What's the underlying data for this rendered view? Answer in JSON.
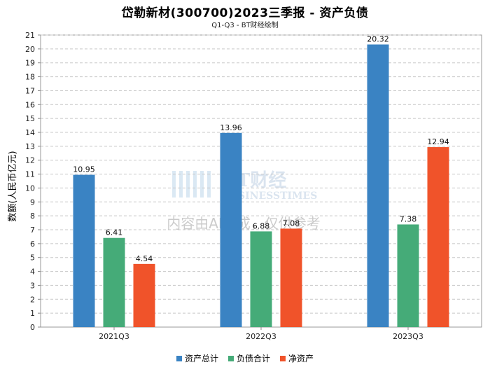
{
  "title": "岱勒新材(300700)2023三季报 - 资产负债",
  "subtitle": "Q1-Q3 - BT财经绘制",
  "watermark": {
    "brand": "BT财经",
    "brand_en": "BUSINESSTIMES",
    "notice": "内容由AI生成，仅供参考"
  },
  "chart_data": {
    "type": "bar",
    "title": "岱勒新材(300700)2023三季报 - 资产负债",
    "subtitle": "Q1-Q3 - BT财经绘制",
    "xlabel": "",
    "ylabel": "数额(人民币亿元)",
    "ylim": [
      0,
      21
    ],
    "yticks": [
      "0",
      "1",
      "2",
      "3",
      "4",
      "5",
      "6",
      "7",
      "8",
      "9",
      "10",
      "11",
      "12",
      "13",
      "14",
      "15",
      "16",
      "17",
      "18",
      "19",
      "20",
      "21"
    ],
    "grid": true,
    "legend_position": "bottom",
    "categories": [
      "2021Q3",
      "2022Q3",
      "2023Q3"
    ],
    "series": [
      {
        "name": "资产总计",
        "color": "#3a83c3",
        "values": [
          10.95,
          13.96,
          20.32
        ],
        "labels": [
          "10.95",
          "13.96",
          "20.32"
        ]
      },
      {
        "name": "负债合计",
        "color": "#45ab78",
        "values": [
          6.41,
          6.88,
          7.38
        ],
        "labels": [
          "6.41",
          "6.88",
          "7.38"
        ]
      },
      {
        "name": "净资产",
        "color": "#f0532a",
        "values": [
          4.54,
          7.08,
          12.94
        ],
        "labels": [
          "4.54",
          "7.08",
          "12.94"
        ]
      }
    ]
  }
}
